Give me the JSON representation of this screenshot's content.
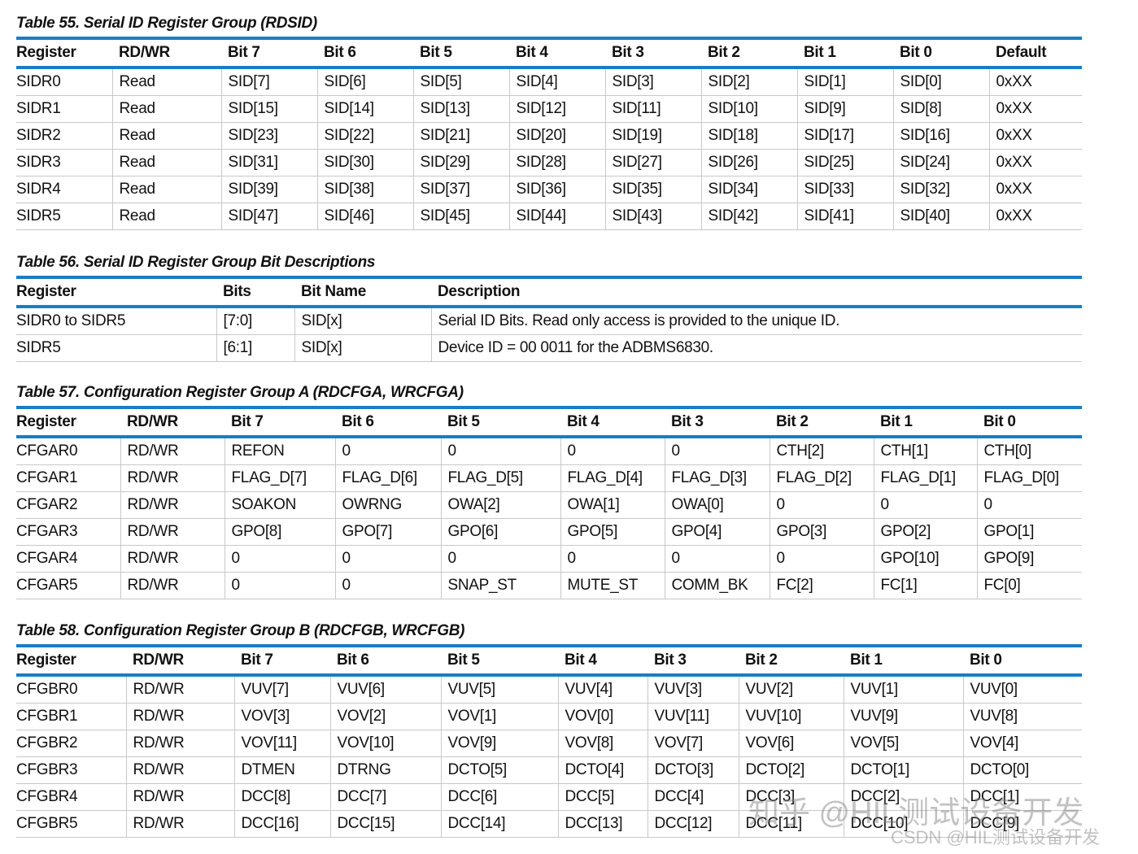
{
  "tables": [
    {
      "title": "Table 55. Serial ID Register Group (RDSID)",
      "header": [
        "Register",
        "RD/WR",
        "Bit 7",
        "Bit 6",
        "Bit 5",
        "Bit 4",
        "Bit 3",
        "Bit 2",
        "Bit 1",
        "Bit 0",
        "Default"
      ],
      "rows": [
        [
          "SIDR0",
          "Read",
          "SID[7]",
          "SID[6]",
          "SID[5]",
          "SID[4]",
          "SID[3]",
          "SID[2]",
          "SID[1]",
          "SID[0]",
          "0xXX"
        ],
        [
          "SIDR1",
          "Read",
          "SID[15]",
          "SID[14]",
          "SID[13]",
          "SID[12]",
          "SID[11]",
          "SID[10]",
          "SID[9]",
          "SID[8]",
          "0xXX"
        ],
        [
          "SIDR2",
          "Read",
          "SID[23]",
          "SID[22]",
          "SID[21]",
          "SID[20]",
          "SID[19]",
          "SID[18]",
          "SID[17]",
          "SID[16]",
          "0xXX"
        ],
        [
          "SIDR3",
          "Read",
          "SID[31]",
          "SID[30]",
          "SID[29]",
          "SID[28]",
          "SID[27]",
          "SID[26]",
          "SID[25]",
          "SID[24]",
          "0xXX"
        ],
        [
          "SIDR4",
          "Read",
          "SID[39]",
          "SID[38]",
          "SID[37]",
          "SID[36]",
          "SID[35]",
          "SID[34]",
          "SID[33]",
          "SID[32]",
          "0xXX"
        ],
        [
          "SIDR5",
          "Read",
          "SID[47]",
          "SID[46]",
          "SID[45]",
          "SID[44]",
          "SID[43]",
          "SID[42]",
          "SID[41]",
          "SID[40]",
          "0xXX"
        ]
      ]
    },
    {
      "title": "Table 56. Serial ID Register Group Bit Descriptions",
      "header": [
        "Register",
        "Bits",
        "Bit Name",
        "Description"
      ],
      "rows": [
        [
          "SIDR0 to SIDR5",
          "[7:0]",
          "SID[x]",
          "Serial ID Bits. Read only access is provided to the unique ID."
        ],
        [
          "SIDR5",
          "[6:1]",
          "SID[x]",
          "Device ID = 00 0011 for the ADBMS6830."
        ]
      ]
    },
    {
      "title": "Table 57. Configuration Register Group A (RDCFGA, WRCFGA)",
      "header": [
        "Register",
        "RD/WR",
        "Bit 7",
        "Bit 6",
        "Bit 5",
        "Bit 4",
        "Bit 3",
        "Bit 2",
        "Bit 1",
        "Bit 0"
      ],
      "rows": [
        [
          "CFGAR0",
          "RD/WR",
          "REFON",
          "0",
          "0",
          "0",
          "0",
          "CTH[2]",
          "CTH[1]",
          "CTH[0]"
        ],
        [
          "CFGAR1",
          "RD/WR",
          "FLAG_D[7]",
          "FLAG_D[6]",
          "FLAG_D[5]",
          "FLAG_D[4]",
          "FLAG_D[3]",
          "FLAG_D[2]",
          "FLAG_D[1]",
          "FLAG_D[0]"
        ],
        [
          "CFGAR2",
          "RD/WR",
          "SOAKON",
          "OWRNG",
          "OWA[2]",
          "OWA[1]",
          "OWA[0]",
          "0",
          "0",
          "0"
        ],
        [
          "CFGAR3",
          "RD/WR",
          "GPO[8]",
          "GPO[7]",
          "GPO[6]",
          "GPO[5]",
          "GPO[4]",
          "GPO[3]",
          "GPO[2]",
          "GPO[1]"
        ],
        [
          "CFGAR4",
          "RD/WR",
          "0",
          "0",
          "0",
          "0",
          "0",
          "0",
          "GPO[10]",
          "GPO[9]"
        ],
        [
          "CFGAR5",
          "RD/WR",
          "0",
          "0",
          "SNAP_ST",
          "MUTE_ST",
          "COMM_BK",
          "FC[2]",
          "FC[1]",
          "FC[0]"
        ]
      ]
    },
    {
      "title": "Table 58. Configuration Register Group B (RDCFGB, WRCFGB)",
      "header": [
        "Register",
        "RD/WR",
        "Bit 7",
        "Bit 6",
        "Bit 5",
        "Bit 4",
        "Bit 3",
        "Bit 2",
        "Bit 1",
        "Bit 0"
      ],
      "rows": [
        [
          "CFGBR0",
          "RD/WR",
          "VUV[7]",
          "VUV[6]",
          "VUV[5]",
          "VUV[4]",
          "VUV[3]",
          "VUV[2]",
          "VUV[1]",
          "VUV[0]"
        ],
        [
          "CFGBR1",
          "RD/WR",
          "VOV[3]",
          "VOV[2]",
          "VOV[1]",
          "VOV[0]",
          "VUV[11]",
          "VUV[10]",
          "VUV[9]",
          "VUV[8]"
        ],
        [
          "CFGBR2",
          "RD/WR",
          "VOV[11]",
          "VOV[10]",
          "VOV[9]",
          "VOV[8]",
          "VOV[7]",
          "VOV[6]",
          "VOV[5]",
          "VOV[4]"
        ],
        [
          "CFGBR3",
          "RD/WR",
          "DTMEN",
          "DTRNG",
          "DCTO[5]",
          "DCTO[4]",
          "DCTO[3]",
          "DCTO[2]",
          "DCTO[1]",
          "DCTO[0]"
        ],
        [
          "CFGBR4",
          "RD/WR",
          "DCC[8]",
          "DCC[7]",
          "DCC[6]",
          "DCC[5]",
          "DCC[4]",
          "DCC[3]",
          "DCC[2]",
          "DCC[1]"
        ],
        [
          "CFGBR5",
          "RD/WR",
          "DCC[16]",
          "DCC[15]",
          "DCC[14]",
          "DCC[13]",
          "DCC[12]",
          "DCC[11]",
          "DCC[10]",
          "DCC[9]"
        ]
      ]
    }
  ],
  "watermark": {
    "zhihu": "知乎 @HIL测试设备开发",
    "csdn": "CSDN @HIL测试设备开发"
  }
}
